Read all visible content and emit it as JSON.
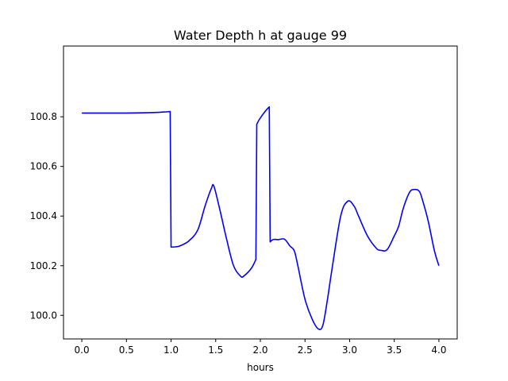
{
  "chart_data": {
    "type": "line",
    "title": "Water Depth h at gauge 99",
    "xlabel": "hours",
    "ylabel": "",
    "xlim": [
      -0.205,
      4.205
    ],
    "ylim": [
      99.905,
      101.085
    ],
    "xticks": [
      0.0,
      0.5,
      1.0,
      1.5,
      2.0,
      2.5,
      3.0,
      3.5,
      4.0
    ],
    "xtick_labels": [
      "0.0",
      "0.5",
      "1.0",
      "1.5",
      "2.0",
      "2.5",
      "3.0",
      "3.5",
      "4.0"
    ],
    "yticks": [
      100.0,
      100.2,
      100.4,
      100.6,
      100.8
    ],
    "ytick_labels": [
      "100.0",
      "100.2",
      "100.4",
      "100.6",
      "100.8"
    ],
    "grid": false,
    "legend": "none",
    "series": [
      {
        "color": "#0000ff",
        "x": [
          0.0,
          0.5,
          0.8,
          0.95,
          0.99,
          1.0,
          1.05,
          1.1,
          1.2,
          1.3,
          1.38,
          1.45,
          1.48,
          1.55,
          1.62,
          1.7,
          1.78,
          1.82,
          1.9,
          1.95,
          1.96,
          1.99,
          2.05,
          2.1,
          2.11,
          2.12,
          2.15,
          2.2,
          2.27,
          2.33,
          2.38,
          2.42,
          2.5,
          2.58,
          2.65,
          2.7,
          2.75,
          2.8,
          2.9,
          2.98,
          3.05,
          3.1,
          3.2,
          3.3,
          3.35,
          3.42,
          3.5,
          3.55,
          3.6,
          3.67,
          3.72,
          3.78,
          3.82,
          3.88,
          3.95,
          4.0
        ],
        "y": [
          100.815,
          100.815,
          100.817,
          100.82,
          100.821,
          100.275,
          100.276,
          100.28,
          100.3,
          100.345,
          100.44,
          100.51,
          100.52,
          100.42,
          100.31,
          100.2,
          100.157,
          100.16,
          100.19,
          100.225,
          100.77,
          100.79,
          100.82,
          100.84,
          100.296,
          100.3,
          100.306,
          100.305,
          100.307,
          100.28,
          100.26,
          100.2,
          100.065,
          99.985,
          99.945,
          99.96,
          100.06,
          100.18,
          100.4,
          100.46,
          100.44,
          100.4,
          100.32,
          100.27,
          100.262,
          100.265,
          100.32,
          100.36,
          100.43,
          100.495,
          100.507,
          100.5,
          100.46,
          100.38,
          100.26,
          100.2
        ]
      }
    ]
  }
}
